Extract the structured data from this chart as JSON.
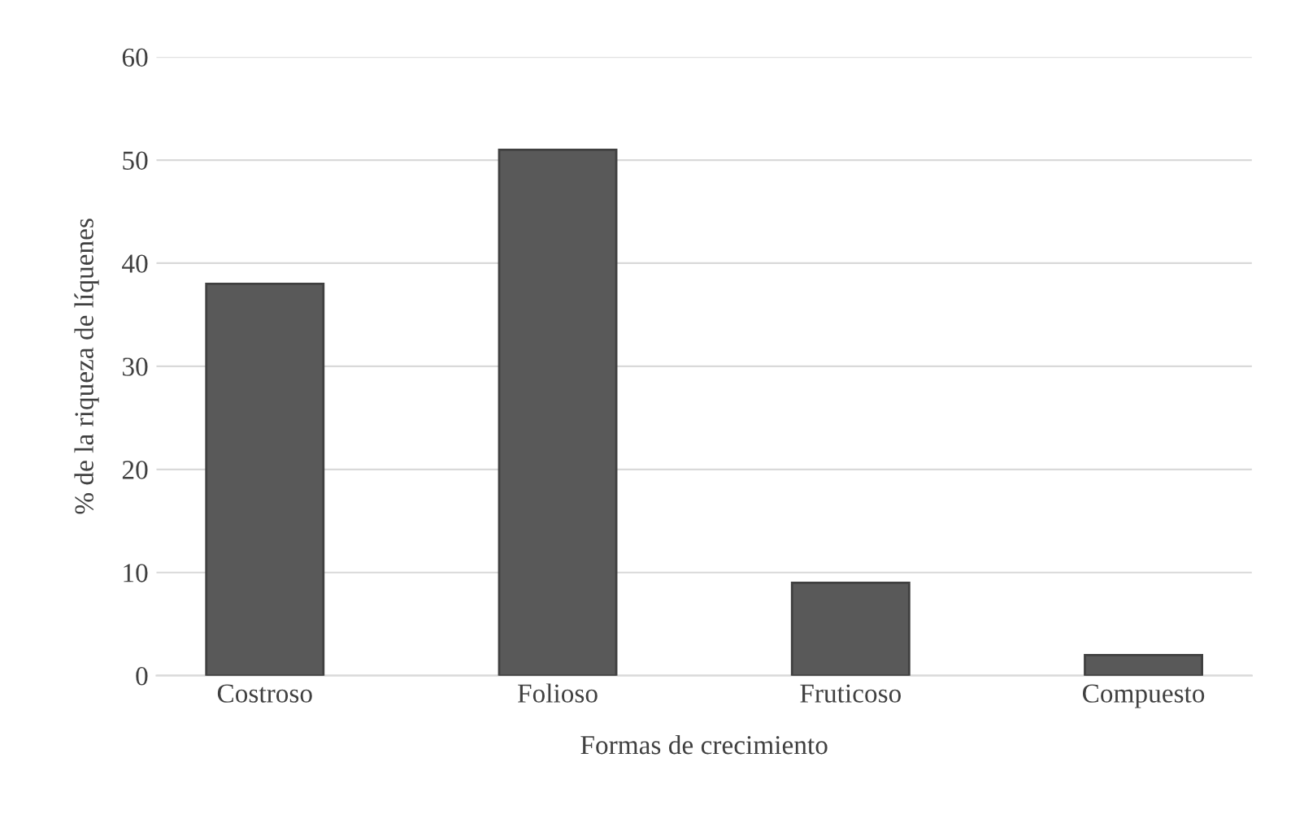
{
  "chart_data": {
    "type": "bar",
    "xlabel": "Formas de crecimiento",
    "ylabel": "% de la riqueza de líquenes",
    "categories": [
      "Costroso",
      "Folioso",
      "Fruticoso",
      "Compuesto"
    ],
    "values": [
      38,
      51,
      9,
      2
    ],
    "color": "#595959",
    "ylim": [
      0,
      60
    ],
    "yticks": [
      0,
      10,
      20,
      30,
      40,
      50,
      60
    ],
    "grid": "y"
  }
}
